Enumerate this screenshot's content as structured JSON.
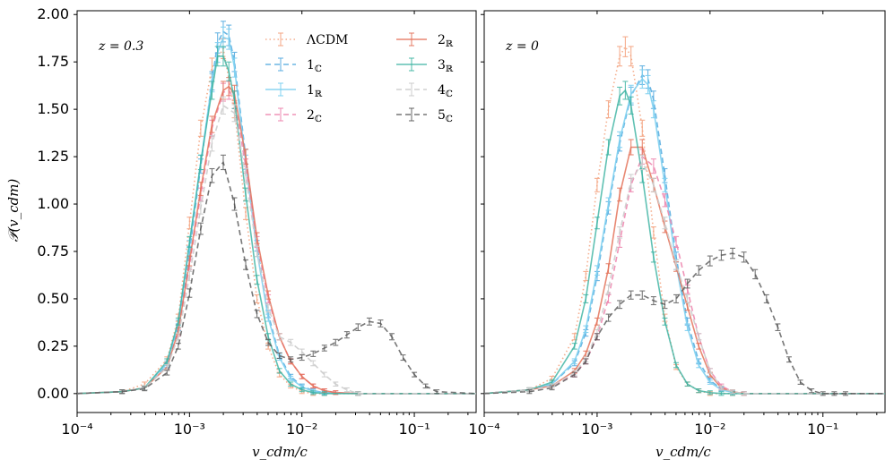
{
  "chart_data": {
    "type": "line",
    "xscale": "log",
    "xlim_log10": [
      -4,
      -0.45
    ],
    "ylim": [
      -0.1,
      2.02
    ],
    "xlabel": "v_cdm/c",
    "ylabel": "𝒫(v_cdm)",
    "x_tick_labels": [
      "10⁻⁴",
      "10⁻³",
      "10⁻²",
      "10⁻¹"
    ],
    "x_tick_values_log10": [
      -4,
      -3,
      -2,
      -1
    ],
    "y_ticks": [
      0.0,
      0.25,
      0.5,
      0.75,
      1.0,
      1.25,
      1.5,
      1.75,
      2.0
    ],
    "y_tick_labels": [
      "0.00",
      "0.25",
      "0.50",
      "0.75",
      "1.00",
      "1.25",
      "1.50",
      "1.75",
      "2.00"
    ],
    "legend": {
      "placement": "top-right of left panel",
      "entries": [
        {
          "label": "ΛCDM",
          "sub": "",
          "key": "lcdm"
        },
        {
          "label": "1",
          "sub": "ℂ",
          "key": "s1c"
        },
        {
          "label": "1",
          "sub": "ℝ",
          "key": "s1r"
        },
        {
          "label": "2",
          "sub": "ℂ",
          "key": "s2c"
        },
        {
          "label": "2",
          "sub": "ℝ",
          "key": "s2r"
        },
        {
          "label": "3",
          "sub": "ℝ",
          "key": "s3r"
        },
        {
          "label": "4",
          "sub": "ℂ",
          "key": "s4c"
        },
        {
          "label": "5",
          "sub": "ℂ",
          "key": "s5c"
        }
      ]
    },
    "styles": {
      "lcdm": {
        "color": "#f4a582",
        "dash": "dotted",
        "opacity": 0.9
      },
      "s1c": {
        "color": "#5aaee0",
        "dash": "dashed",
        "opacity": 0.9
      },
      "s1r": {
        "color": "#7fd0f0",
        "dash": "solid",
        "opacity": 0.9
      },
      "s2c": {
        "color": "#ee88b0",
        "dash": "dashed",
        "opacity": 0.9
      },
      "s2r": {
        "color": "#e4735a",
        "dash": "solid",
        "opacity": 0.85
      },
      "s3r": {
        "color": "#38b2a0",
        "dash": "solid",
        "opacity": 0.8
      },
      "s4c": {
        "color": "#cccccc",
        "dash": "dashed",
        "opacity": 0.9
      },
      "s5c": {
        "color": "#555555",
        "dash": "dashed",
        "opacity": 0.8
      }
    },
    "panels": [
      {
        "label": "z = 0.3",
        "series": [
          {
            "key": "lcdm",
            "x_log10": [
              -4,
              -3.6,
              -3.4,
              -3.2,
              -3.1,
              -3.0,
              -2.9,
              -2.8,
              -2.7,
              -2.6,
              -2.5,
              -2.4,
              -2.3,
              -2.2,
              -2.1,
              -2.0,
              -1.9,
              -1.8,
              -1.5,
              -0.45
            ],
            "y": [
              0,
              0.01,
              0.05,
              0.18,
              0.4,
              0.9,
              1.4,
              1.72,
              1.82,
              1.5,
              0.95,
              0.5,
              0.25,
              0.1,
              0.04,
              0.01,
              0,
              0,
              0,
              0
            ]
          },
          {
            "key": "s1c",
            "x_log10": [
              -4,
              -3.6,
              -3.4,
              -3.2,
              -3.1,
              -3.0,
              -2.9,
              -2.8,
              -2.75,
              -2.7,
              -2.65,
              -2.6,
              -2.5,
              -2.4,
              -2.3,
              -2.2,
              -2.1,
              -2.0,
              -1.9,
              -1.8,
              -1.5,
              -0.45
            ],
            "y": [
              0,
              0.01,
              0.03,
              0.15,
              0.35,
              0.75,
              1.2,
              1.65,
              1.85,
              1.91,
              1.89,
              1.75,
              1.25,
              0.78,
              0.42,
              0.2,
              0.09,
              0.04,
              0.015,
              0.005,
              0,
              0
            ]
          },
          {
            "key": "s1r",
            "x_log10": [
              -4,
              -3.6,
              -3.4,
              -3.2,
              -3.1,
              -3.0,
              -2.9,
              -2.8,
              -2.75,
              -2.7,
              -2.65,
              -2.6,
              -2.5,
              -2.4,
              -2.3,
              -2.2,
              -2.1,
              -2.0,
              -1.9,
              -1.8,
              -1.5,
              -0.45
            ],
            "y": [
              0,
              0.01,
              0.03,
              0.16,
              0.37,
              0.78,
              1.22,
              1.64,
              1.8,
              1.88,
              1.87,
              1.72,
              1.22,
              0.75,
              0.4,
              0.19,
              0.08,
              0.035,
              0.012,
              0.004,
              0,
              0
            ]
          },
          {
            "key": "s2c",
            "x_log10": [
              -4,
              -3.6,
              -3.4,
              -3.2,
              -3.1,
              -3.0,
              -2.9,
              -2.8,
              -2.7,
              -2.65,
              -2.6,
              -2.5,
              -2.4,
              -2.3,
              -2.2,
              -2.1,
              -2.0,
              -1.9,
              -1.8,
              -1.7,
              -1.5,
              -0.45
            ],
            "y": [
              0,
              0.01,
              0.03,
              0.14,
              0.32,
              0.68,
              1.05,
              1.4,
              1.59,
              1.6,
              1.55,
              1.2,
              0.8,
              0.5,
              0.3,
              0.17,
              0.09,
              0.04,
              0.015,
              0.005,
              0,
              0
            ]
          },
          {
            "key": "s2r",
            "x_log10": [
              -4,
              -3.6,
              -3.4,
              -3.2,
              -3.1,
              -3.0,
              -2.9,
              -2.8,
              -2.7,
              -2.65,
              -2.6,
              -2.5,
              -2.4,
              -2.3,
              -2.2,
              -2.1,
              -2.0,
              -1.9,
              -1.8,
              -1.7,
              -1.5,
              -0.45
            ],
            "y": [
              0,
              0.01,
              0.03,
              0.14,
              0.33,
              0.7,
              1.08,
              1.42,
              1.6,
              1.62,
              1.58,
              1.25,
              0.82,
              0.52,
              0.3,
              0.17,
              0.09,
              0.04,
              0.015,
              0.005,
              0,
              0
            ]
          },
          {
            "key": "s3r",
            "x_log10": [
              -4,
              -3.6,
              -3.4,
              -3.2,
              -3.1,
              -3.0,
              -2.9,
              -2.8,
              -2.75,
              -2.7,
              -2.65,
              -2.6,
              -2.5,
              -2.4,
              -2.3,
              -2.2,
              -2.1,
              -2.0,
              -1.9,
              -1.8,
              -1.5,
              -0.45
            ],
            "y": [
              0,
              0.01,
              0.03,
              0.17,
              0.38,
              0.8,
              1.22,
              1.6,
              1.78,
              1.78,
              1.7,
              1.55,
              1.05,
              0.6,
              0.3,
              0.12,
              0.05,
              0.02,
              0.005,
              0,
              0,
              0
            ]
          },
          {
            "key": "s4c",
            "x_log10": [
              -4,
              -3.6,
              -3.4,
              -3.2,
              -3.1,
              -3.0,
              -2.9,
              -2.8,
              -2.7,
              -2.6,
              -2.5,
              -2.4,
              -2.3,
              -2.2,
              -2.1,
              -2.0,
              -1.9,
              -1.8,
              -1.7,
              -1.6,
              -1.5,
              -0.45
            ],
            "y": [
              0,
              0.01,
              0.03,
              0.14,
              0.3,
              0.62,
              0.98,
              1.32,
              1.52,
              1.48,
              1.15,
              0.75,
              0.45,
              0.3,
              0.27,
              0.22,
              0.16,
              0.1,
              0.05,
              0.02,
              0,
              0
            ]
          },
          {
            "key": "s5c",
            "x_log10": [
              -4,
              -3.6,
              -3.4,
              -3.2,
              -3.1,
              -3.0,
              -2.9,
              -2.8,
              -2.7,
              -2.6,
              -2.5,
              -2.4,
              -2.3,
              -2.2,
              -2.1,
              -2.0,
              -1.9,
              -1.8,
              -1.7,
              -1.6,
              -1.5,
              -1.4,
              -1.3,
              -1.2,
              -1.1,
              -1.0,
              -0.9,
              -0.8,
              -0.45
            ],
            "y": [
              0,
              0.01,
              0.025,
              0.11,
              0.25,
              0.53,
              0.87,
              1.15,
              1.22,
              1.0,
              0.68,
              0.42,
              0.27,
              0.2,
              0.18,
              0.19,
              0.21,
              0.24,
              0.27,
              0.31,
              0.35,
              0.38,
              0.37,
              0.3,
              0.19,
              0.1,
              0.04,
              0.01,
              0
            ]
          }
        ]
      },
      {
        "label": "z = 0",
        "series": [
          {
            "key": "lcdm",
            "x_log10": [
              -4,
              -3.6,
              -3.4,
              -3.2,
              -3.1,
              -3.0,
              -2.9,
              -2.8,
              -2.75,
              -2.7,
              -2.6,
              -2.5,
              -2.4,
              -2.3,
              -2.2,
              -2.1,
              -2.0,
              -1.8,
              -0.45
            ],
            "y": [
              0,
              0.02,
              0.08,
              0.3,
              0.62,
              1.1,
              1.5,
              1.78,
              1.83,
              1.78,
              1.4,
              0.85,
              0.4,
              0.14,
              0.05,
              0.015,
              0,
              0,
              0
            ]
          },
          {
            "key": "s1c",
            "x_log10": [
              -4,
              -3.6,
              -3.4,
              -3.2,
              -3.1,
              -3.0,
              -2.9,
              -2.8,
              -2.7,
              -2.6,
              -2.55,
              -2.5,
              -2.4,
              -2.3,
              -2.2,
              -2.1,
              -2.0,
              -1.9,
              -1.8,
              -1.7,
              -0.45
            ],
            "y": [
              0,
              0.02,
              0.05,
              0.16,
              0.32,
              0.62,
              0.98,
              1.32,
              1.57,
              1.68,
              1.66,
              1.55,
              1.15,
              0.72,
              0.38,
              0.17,
              0.07,
              0.025,
              0.008,
              0,
              0
            ]
          },
          {
            "key": "s1r",
            "x_log10": [
              -4,
              -3.6,
              -3.4,
              -3.2,
              -3.1,
              -3.0,
              -2.9,
              -2.8,
              -2.7,
              -2.6,
              -2.55,
              -2.5,
              -2.4,
              -2.3,
              -2.2,
              -2.1,
              -2.0,
              -1.9,
              -1.8,
              -1.7,
              -0.45
            ],
            "y": [
              0,
              0.02,
              0.05,
              0.17,
              0.34,
              0.65,
              1.0,
              1.34,
              1.58,
              1.66,
              1.63,
              1.5,
              1.1,
              0.68,
              0.35,
              0.15,
              0.06,
              0.02,
              0.006,
              0,
              0
            ]
          },
          {
            "key": "s2c",
            "x_log10": [
              -4,
              -3.6,
              -3.4,
              -3.2,
              -3.1,
              -3.0,
              -2.9,
              -2.8,
              -2.7,
              -2.6,
              -2.5,
              -2.4,
              -2.3,
              -2.2,
              -2.1,
              -2.0,
              -1.9,
              -1.8,
              -1.7,
              -0.45
            ],
            "y": [
              0,
              0.02,
              0.04,
              0.1,
              0.17,
              0.3,
              0.5,
              0.8,
              1.1,
              1.25,
              1.2,
              1.02,
              0.8,
              0.55,
              0.3,
              0.12,
              0.04,
              0.01,
              0,
              0
            ]
          },
          {
            "key": "s2r",
            "x_log10": [
              -4,
              -3.6,
              -3.4,
              -3.2,
              -3.1,
              -3.0,
              -2.9,
              -2.8,
              -2.7,
              -2.6,
              -2.5,
              -2.4,
              -2.3,
              -2.2,
              -2.1,
              -2.0,
              -1.9,
              -1.8,
              -1.7,
              -0.45
            ],
            "y": [
              0,
              0.02,
              0.04,
              0.12,
              0.21,
              0.38,
              0.66,
              1.05,
              1.3,
              1.3,
              1.1,
              0.88,
              0.67,
              0.46,
              0.25,
              0.1,
              0.03,
              0.01,
              0,
              0
            ]
          },
          {
            "key": "s3r",
            "x_log10": [
              -4,
              -3.6,
              -3.4,
              -3.2,
              -3.1,
              -3.0,
              -2.9,
              -2.8,
              -2.75,
              -2.7,
              -2.6,
              -2.5,
              -2.4,
              -2.3,
              -2.2,
              -2.1,
              -2.0,
              -1.9,
              -1.8,
              -0.45
            ],
            "y": [
              0,
              0.02,
              0.06,
              0.25,
              0.5,
              0.9,
              1.3,
              1.57,
              1.6,
              1.52,
              1.15,
              0.72,
              0.38,
              0.15,
              0.05,
              0.015,
              0.005,
              0,
              0,
              0
            ]
          },
          {
            "key": "s4c",
            "x_log10": [
              -4,
              -3.6,
              -3.4,
              -3.2,
              -3.1,
              -3.0,
              -2.9,
              -2.8,
              -2.7,
              -2.6,
              -2.5,
              -2.4,
              -2.3,
              -2.2,
              -2.1,
              -2.0,
              -1.9,
              -1.8,
              -1.7,
              -0.45
            ],
            "y": [
              0,
              0.02,
              0.04,
              0.11,
              0.18,
              0.32,
              0.55,
              0.85,
              1.12,
              1.22,
              1.1,
              0.9,
              0.68,
              0.5,
              0.3,
              0.12,
              0.03,
              0.01,
              0,
              0
            ]
          },
          {
            "key": "s5c",
            "x_log10": [
              -4,
              -3.6,
              -3.4,
              -3.2,
              -3.1,
              -3.0,
              -2.9,
              -2.8,
              -2.7,
              -2.6,
              -2.5,
              -2.4,
              -2.3,
              -2.2,
              -2.1,
              -2.0,
              -1.9,
              -1.8,
              -1.7,
              -1.6,
              -1.5,
              -1.4,
              -1.3,
              -1.2,
              -1.1,
              -1.0,
              -0.9,
              -0.8,
              -0.45
            ],
            "y": [
              0,
              0.01,
              0.03,
              0.1,
              0.17,
              0.3,
              0.4,
              0.47,
              0.52,
              0.52,
              0.49,
              0.47,
              0.5,
              0.58,
              0.65,
              0.7,
              0.73,
              0.74,
              0.72,
              0.63,
              0.5,
              0.35,
              0.18,
              0.06,
              0.015,
              0,
              0,
              0,
              0
            ]
          }
        ]
      }
    ]
  }
}
